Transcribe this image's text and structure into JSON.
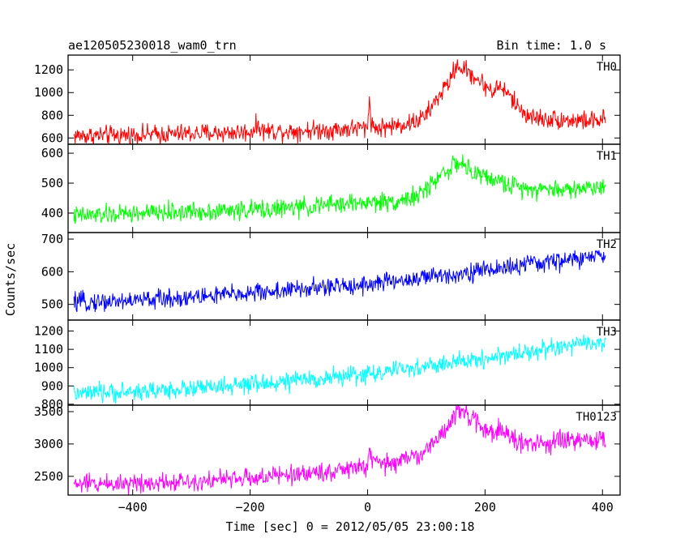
{
  "chart_data": {
    "type": "line",
    "title": "ae120505230018_wam0_trn",
    "subtitle": "Bin time: 1.0 s",
    "xlabel": "Time [sec] 0 = 2012/05/05 23:00:18",
    "ylabel": "Counts/sec",
    "xlim": [
      -510,
      430
    ],
    "xticks": [
      -400,
      -200,
      0,
      200,
      400
    ],
    "xtick_labels": [
      "−400",
      "−200",
      "0",
      "200",
      "400"
    ],
    "grid": false,
    "panels": [
      {
        "name": "TH0",
        "color": "#ff0000",
        "ylim": [
          545,
          1330
        ],
        "yticks": [
          600,
          800,
          1000,
          1200
        ],
        "ytick_labels": [
          "600",
          "800",
          "1000",
          "1200"
        ],
        "x": [
          -500,
          -450,
          -400,
          -350,
          -300,
          -250,
          -200,
          -185,
          -180,
          -150,
          -100,
          -50,
          -10,
          0,
          3,
          6,
          10,
          20,
          50,
          80,
          100,
          120,
          140,
          150,
          160,
          180,
          200,
          215,
          225,
          240,
          260,
          280,
          300,
          350,
          400,
          405
        ],
        "y": [
          620,
          622,
          627,
          632,
          640,
          645,
          652,
          715,
          665,
          660,
          668,
          675,
          690,
          680,
          970,
          760,
          690,
          690,
          710,
          740,
          800,
          960,
          1100,
          1230,
          1220,
          1150,
          1060,
          1010,
          1060,
          980,
          850,
          780,
          770,
          755,
          750,
          770
        ]
      },
      {
        "name": "TH1",
        "color": "#00ff00",
        "ylim": [
          335,
          630
        ],
        "yticks": [
          400,
          500,
          600
        ],
        "ytick_labels": [
          "400",
          "500",
          "600"
        ],
        "x": [
          -500,
          -400,
          -300,
          -200,
          -150,
          -100,
          -50,
          0,
          50,
          90,
          110,
          130,
          150,
          160,
          170,
          180,
          190,
          200,
          250,
          300,
          350,
          400,
          405
        ],
        "y": [
          390,
          398,
          405,
          410,
          415,
          420,
          430,
          435,
          440,
          460,
          500,
          540,
          560,
          570,
          545,
          520,
          540,
          520,
          490,
          480,
          480,
          490,
          495
        ]
      },
      {
        "name": "TH2",
        "color": "#0000ff",
        "ylim": [
          452,
          720
        ],
        "yticks": [
          500,
          600,
          700
        ],
        "ytick_labels": [
          "500",
          "600",
          "700"
        ],
        "x": [
          -500,
          -400,
          -300,
          -200,
          -100,
          0,
          100,
          200,
          300,
          400,
          405
        ],
        "y": [
          505,
          512,
          522,
          535,
          548,
          562,
          582,
          605,
          628,
          648,
          650
        ]
      },
      {
        "name": "TH3",
        "color": "#00ffff",
        "ylim": [
          795,
          1260
        ],
        "yticks": [
          800,
          900,
          1000,
          1100,
          1200
        ],
        "ytick_labels": [
          "800",
          "900",
          "1000",
          "1100",
          "1200"
        ],
        "x": [
          -500,
          -400,
          -300,
          -200,
          -100,
          0,
          100,
          200,
          300,
          400,
          405
        ],
        "y": [
          855,
          868,
          885,
          905,
          935,
          965,
          1005,
          1050,
          1100,
          1140,
          1142
        ]
      },
      {
        "name": "TH0123",
        "color": "#ff00ff",
        "ylim": [
          2210,
          3600
        ],
        "yticks": [
          2500,
          3000,
          3500
        ],
        "ytick_labels": [
          "2500",
          "3000",
          "3500"
        ],
        "x": [
          -500,
          -400,
          -300,
          -200,
          -150,
          -100,
          -50,
          -10,
          0,
          3,
          6,
          10,
          30,
          60,
          90,
          110,
          130,
          145,
          155,
          165,
          180,
          200,
          215,
          225,
          240,
          260,
          280,
          300,
          350,
          400,
          405
        ],
        "y": [
          2380,
          2400,
          2430,
          2470,
          2510,
          2550,
          2590,
          2640,
          2650,
          2980,
          2780,
          2700,
          2690,
          2750,
          2850,
          2980,
          3200,
          3420,
          3510,
          3450,
          3380,
          3230,
          3180,
          3220,
          3120,
          3020,
          2990,
          3010,
          3050,
          3060,
          3070
        ]
      }
    ]
  }
}
